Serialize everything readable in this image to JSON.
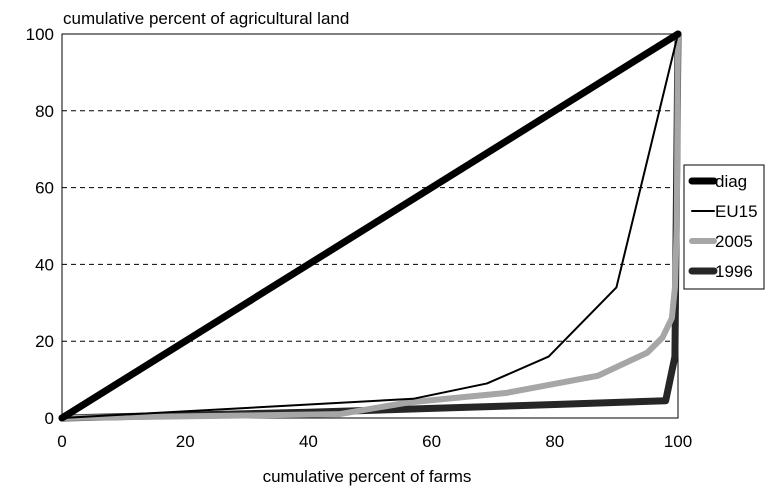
{
  "chart_data": {
    "type": "line",
    "title": "",
    "ylabel": "cumulative percent of agricultural land",
    "xlabel": "cumulative percent of farms",
    "xlim": [
      0,
      100
    ],
    "ylim": [
      0,
      100
    ],
    "xticks": [
      0,
      20,
      40,
      60,
      80,
      100
    ],
    "yticks": [
      0,
      20,
      40,
      60,
      80,
      100
    ],
    "grid": "horizontal dashed",
    "legend_position": "right",
    "series": [
      {
        "name": "diag",
        "color": "#000000",
        "style": "thick",
        "x": [
          0,
          100
        ],
        "y": [
          0,
          100
        ]
      },
      {
        "name": "EU15",
        "color": "#000000",
        "style": "thin",
        "x": [
          0,
          57,
          69,
          79,
          90,
          100
        ],
        "y": [
          0,
          5,
          9,
          16,
          34,
          100
        ]
      },
      {
        "name": "2005",
        "color": "#a6a6a6",
        "style": "thick",
        "x": [
          0,
          45,
          56,
          72,
          87,
          95,
          97.5,
          99,
          99.5,
          99.8,
          100
        ],
        "y": [
          0,
          1,
          4,
          6.5,
          11,
          17,
          21,
          26,
          34,
          50,
          100
        ]
      },
      {
        "name": "1996",
        "color": "#262626",
        "style": "thick",
        "x": [
          0,
          40,
          60,
          80,
          98,
          99.5,
          100
        ],
        "y": [
          0,
          1.5,
          2.5,
          3.5,
          4.5,
          16,
          100
        ]
      }
    ]
  }
}
